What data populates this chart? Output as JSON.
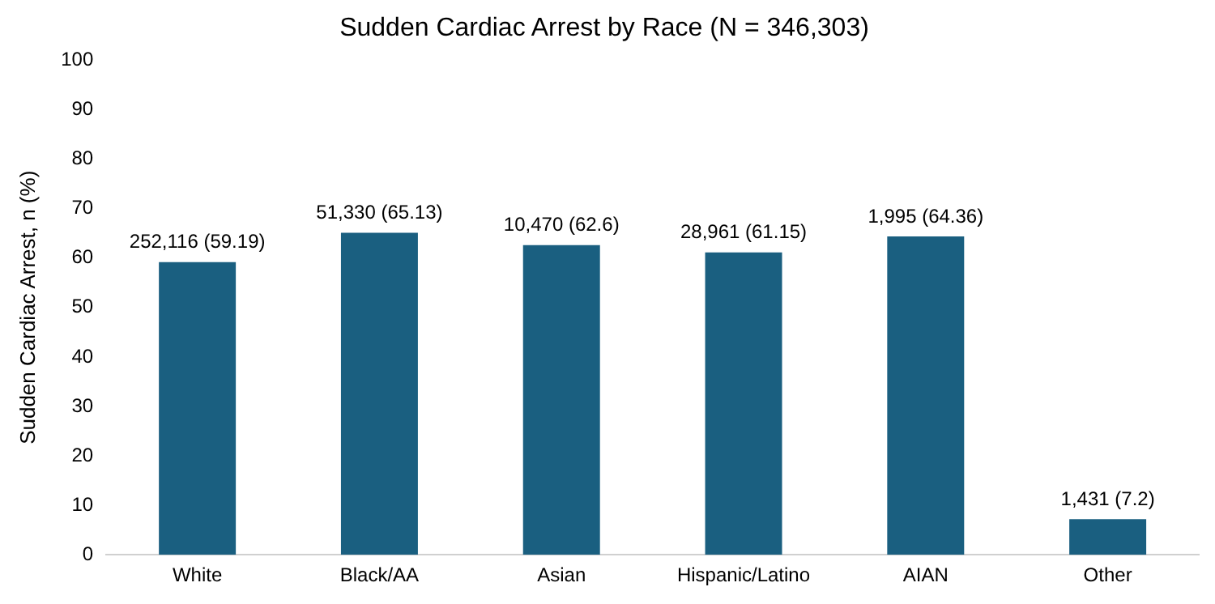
{
  "chart_data": {
    "type": "bar",
    "title": "Sudden Cardiac Arrest by Race (N = 346,303)",
    "ylabel": "Sudden Cardiac Arrest, n (%)",
    "categories": [
      "White",
      "Black/AA",
      "Asian",
      "Hispanic/Latino",
      "AIAN",
      "Other"
    ],
    "values": [
      59.19,
      65.13,
      62.6,
      61.15,
      64.36,
      7.2
    ],
    "value_labels": [
      "252,116 (59.19)",
      "51,330 (65.13)",
      "10,470 (62.6)",
      "28,961 (61.15)",
      "1,995 (64.36)",
      "1,431 (7.2)"
    ],
    "color": "#1a5f80",
    "ylim": [
      0,
      100
    ],
    "yticks": [
      0,
      10,
      20,
      30,
      40,
      50,
      60,
      70,
      80,
      90,
      100
    ],
    "grid": false,
    "legend": false
  }
}
